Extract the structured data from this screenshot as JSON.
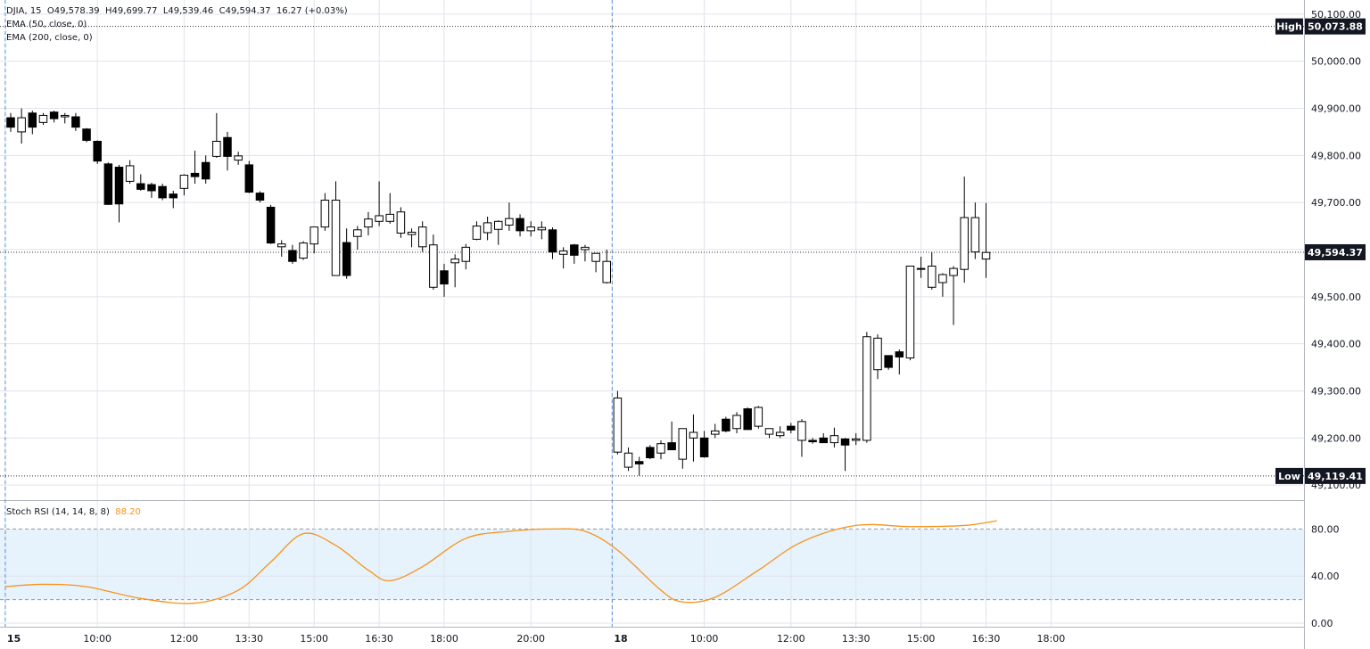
{
  "legend": {
    "symbol": "DJIA",
    "interval": "15",
    "open": "O49,578.39",
    "high": "H49,699.77",
    "low": "L49,539.46",
    "close": "C49,594.37",
    "change": "16.27 (+0.03%)",
    "ema50": "EMA (50, close, 0)",
    "ema200": "EMA (200, close, 0)"
  },
  "rsi_legend": {
    "label": "Stoch RSI (14, 14, 8, 8)",
    "value": "88.20"
  },
  "colors": {
    "up_fill": "#ffffff",
    "down_fill": "#000000",
    "wick": "#000000",
    "rsi_line": "#f7931a",
    "rsi_band": "#e6f3fc",
    "grid": "#e0e3eb"
  },
  "chart_data": [
    {
      "type": "candlestick",
      "title": "",
      "ylim": [
        49070,
        50130
      ],
      "yticks": [
        "50,100.00",
        "50,000.00",
        "49,900.00",
        "49,800.00",
        "49,700.00",
        "49,600.00",
        "49,500.00",
        "49,400.00",
        "49,300.00",
        "49,200.00",
        "49,100.00"
      ],
      "ytick_values": [
        50100,
        50000,
        49900,
        49800,
        49700,
        49600,
        49500,
        49400,
        49300,
        49200,
        49100
      ],
      "xticks": [
        "15",
        "10:00",
        "12:00",
        "13:30",
        "15:00",
        "16:30",
        "18:00",
        "20:00",
        "18",
        "10:00",
        "12:00",
        "13:30",
        "15:00",
        "16:30",
        "18:00"
      ],
      "xtick_bars": [
        -0.5,
        8,
        16,
        22,
        28,
        34,
        40,
        48,
        55.5,
        64,
        72,
        78,
        84,
        90,
        96
      ],
      "bold_xticks": [
        "15",
        "18"
      ],
      "day_separator_bars": [
        -0.5,
        55.5
      ],
      "labels": {
        "high_label": "High",
        "high_value": "50,073.88",
        "low_label": "Low",
        "low_value": "49,119.41",
        "last_value": "49,594.37"
      },
      "high": 50073.88,
      "low": 49119.41,
      "last": 49594.37,
      "candles": [
        {
          "o": 49880,
          "h": 49890,
          "l": 49850,
          "c": 49860
        },
        {
          "o": 49850,
          "h": 49900,
          "l": 49825,
          "c": 49880
        },
        {
          "o": 49890,
          "h": 49895,
          "l": 49845,
          "c": 49860
        },
        {
          "o": 49870,
          "h": 49890,
          "l": 49865,
          "c": 49885
        },
        {
          "o": 49892,
          "h": 49895,
          "l": 49870,
          "c": 49878
        },
        {
          "o": 49882,
          "h": 49890,
          "l": 49868,
          "c": 49885
        },
        {
          "o": 49882,
          "h": 49890,
          "l": 49852,
          "c": 49860
        },
        {
          "o": 49856,
          "h": 49858,
          "l": 49828,
          "c": 49832
        },
        {
          "o": 49830,
          "h": 49832,
          "l": 49782,
          "c": 49788
        },
        {
          "o": 49782,
          "h": 49785,
          "l": 49695,
          "c": 49696
        },
        {
          "o": 49775,
          "h": 49780,
          "l": 49658,
          "c": 49697
        },
        {
          "o": 49745,
          "h": 49790,
          "l": 49740,
          "c": 49778
        },
        {
          "o": 49740,
          "h": 49760,
          "l": 49725,
          "c": 49728
        },
        {
          "o": 49738,
          "h": 49742,
          "l": 49710,
          "c": 49725
        },
        {
          "o": 49734,
          "h": 49740,
          "l": 49705,
          "c": 49710
        },
        {
          "o": 49718,
          "h": 49725,
          "l": 49688,
          "c": 49710
        },
        {
          "o": 49730,
          "h": 49760,
          "l": 49715,
          "c": 49758
        },
        {
          "o": 49762,
          "h": 49810,
          "l": 49740,
          "c": 49755
        },
        {
          "o": 49785,
          "h": 49800,
          "l": 49740,
          "c": 49750
        },
        {
          "o": 49798,
          "h": 49890,
          "l": 49795,
          "c": 49830
        },
        {
          "o": 49838,
          "h": 49850,
          "l": 49768,
          "c": 49798
        },
        {
          "o": 49790,
          "h": 49808,
          "l": 49780,
          "c": 49799
        },
        {
          "o": 49780,
          "h": 49788,
          "l": 49720,
          "c": 49722
        },
        {
          "o": 49720,
          "h": 49724,
          "l": 49700,
          "c": 49705
        },
        {
          "o": 49690,
          "h": 49695,
          "l": 49612,
          "c": 49614
        },
        {
          "o": 49606,
          "h": 49620,
          "l": 49585,
          "c": 49612
        },
        {
          "o": 49598,
          "h": 49610,
          "l": 49570,
          "c": 49575
        },
        {
          "o": 49582,
          "h": 49618,
          "l": 49578,
          "c": 49614
        },
        {
          "o": 49612,
          "h": 49640,
          "l": 49592,
          "c": 49648
        },
        {
          "o": 49648,
          "h": 49720,
          "l": 49640,
          "c": 49705
        },
        {
          "o": 49545,
          "h": 49745,
          "l": 49545,
          "c": 49705
        },
        {
          "o": 49615,
          "h": 49645,
          "l": 49538,
          "c": 49545
        },
        {
          "o": 49628,
          "h": 49650,
          "l": 49600,
          "c": 49642
        },
        {
          "o": 49648,
          "h": 49680,
          "l": 49630,
          "c": 49665
        },
        {
          "o": 49660,
          "h": 49745,
          "l": 49650,
          "c": 49672
        },
        {
          "o": 49660,
          "h": 49720,
          "l": 49655,
          "c": 49675
        },
        {
          "o": 49635,
          "h": 49690,
          "l": 49625,
          "c": 49680
        },
        {
          "o": 49632,
          "h": 49645,
          "l": 49605,
          "c": 49637
        },
        {
          "o": 49606,
          "h": 49660,
          "l": 49595,
          "c": 49648
        },
        {
          "o": 49520,
          "h": 49632,
          "l": 49515,
          "c": 49610
        },
        {
          "o": 49555,
          "h": 49570,
          "l": 49500,
          "c": 49527
        },
        {
          "o": 49572,
          "h": 49590,
          "l": 49520,
          "c": 49580
        },
        {
          "o": 49575,
          "h": 49612,
          "l": 49558,
          "c": 49605
        },
        {
          "o": 49622,
          "h": 49660,
          "l": 49620,
          "c": 49650
        },
        {
          "o": 49636,
          "h": 49670,
          "l": 49620,
          "c": 49657
        },
        {
          "o": 49643,
          "h": 49662,
          "l": 49610,
          "c": 49660
        },
        {
          "o": 49652,
          "h": 49700,
          "l": 49640,
          "c": 49666
        },
        {
          "o": 49666,
          "h": 49675,
          "l": 49628,
          "c": 49640
        },
        {
          "o": 49640,
          "h": 49660,
          "l": 49628,
          "c": 49648
        },
        {
          "o": 49642,
          "h": 49660,
          "l": 49622,
          "c": 49647
        },
        {
          "o": 49642,
          "h": 49647,
          "l": 49580,
          "c": 49595
        },
        {
          "o": 49590,
          "h": 49605,
          "l": 49560,
          "c": 49597
        },
        {
          "o": 49610,
          "h": 49612,
          "l": 49570,
          "c": 49588
        },
        {
          "o": 49600,
          "h": 49610,
          "l": 49575,
          "c": 49605
        },
        {
          "o": 49575,
          "h": 49585,
          "l": 49552,
          "c": 49592
        },
        {
          "o": 49530,
          "h": 49600,
          "l": 49528,
          "c": 49575
        },
        {
          "o": 49170,
          "h": 49300,
          "l": 49165,
          "c": 49285
        },
        {
          "o": 49138,
          "h": 49180,
          "l": 49130,
          "c": 49168
        },
        {
          "o": 49150,
          "h": 49160,
          "l": 49120,
          "c": 49145
        },
        {
          "o": 49180,
          "h": 49185,
          "l": 49155,
          "c": 49158
        },
        {
          "o": 49168,
          "h": 49195,
          "l": 49155,
          "c": 49188
        },
        {
          "o": 49190,
          "h": 49235,
          "l": 49180,
          "c": 49175
        },
        {
          "o": 49155,
          "h": 49220,
          "l": 49135,
          "c": 49220
        },
        {
          "o": 49200,
          "h": 49250,
          "l": 49150,
          "c": 49212
        },
        {
          "o": 49200,
          "h": 49215,
          "l": 49158,
          "c": 49160
        },
        {
          "o": 49208,
          "h": 49230,
          "l": 49200,
          "c": 49215
        },
        {
          "o": 49240,
          "h": 49245,
          "l": 49212,
          "c": 49215
        },
        {
          "o": 49220,
          "h": 49255,
          "l": 49210,
          "c": 49248
        },
        {
          "o": 49262,
          "h": 49265,
          "l": 49218,
          "c": 49218
        },
        {
          "o": 49225,
          "h": 49268,
          "l": 49220,
          "c": 49265
        },
        {
          "o": 49208,
          "h": 49218,
          "l": 49200,
          "c": 49220
        },
        {
          "o": 49205,
          "h": 49225,
          "l": 49200,
          "c": 49212
        },
        {
          "o": 49225,
          "h": 49232,
          "l": 49210,
          "c": 49217
        },
        {
          "o": 49195,
          "h": 49240,
          "l": 49160,
          "c": 49235
        },
        {
          "o": 49195,
          "h": 49200,
          "l": 49188,
          "c": 49192
        },
        {
          "o": 49200,
          "h": 49210,
          "l": 49190,
          "c": 49190
        },
        {
          "o": 49190,
          "h": 49222,
          "l": 49180,
          "c": 49205
        },
        {
          "o": 49198,
          "h": 49200,
          "l": 49130,
          "c": 49185
        },
        {
          "o": 49195,
          "h": 49210,
          "l": 49185,
          "c": 49198
        },
        {
          "o": 49195,
          "h": 49425,
          "l": 49190,
          "c": 49415
        },
        {
          "o": 49345,
          "h": 49420,
          "l": 49325,
          "c": 49412
        },
        {
          "o": 49375,
          "h": 49375,
          "l": 49345,
          "c": 49350
        },
        {
          "o": 49383,
          "h": 49388,
          "l": 49335,
          "c": 49372
        },
        {
          "o": 49370,
          "h": 49565,
          "l": 49365,
          "c": 49565
        },
        {
          "o": 49560,
          "h": 49585,
          "l": 49540,
          "c": 49560
        },
        {
          "o": 49520,
          "h": 49595,
          "l": 49515,
          "c": 49565
        },
        {
          "o": 49530,
          "h": 49550,
          "l": 49500,
          "c": 49547
        },
        {
          "o": 49545,
          "h": 49565,
          "l": 49440,
          "c": 49560
        },
        {
          "o": 49558,
          "h": 49755,
          "l": 49530,
          "c": 49668
        },
        {
          "o": 49595,
          "h": 49700,
          "l": 49580,
          "c": 49668
        },
        {
          "o": 49580,
          "h": 49699,
          "l": 49540,
          "c": 49594
        }
      ]
    },
    {
      "type": "line",
      "title": "",
      "ylim": [
        -3,
        103
      ],
      "yticks": [
        "80.00",
        "40.00",
        "0.00"
      ],
      "ytick_values": [
        80,
        40,
        0
      ],
      "band": [
        20,
        80
      ],
      "x_bars": [
        -0.5,
        3,
        7,
        12,
        17,
        21,
        24,
        27,
        30,
        33,
        35,
        38,
        42,
        46,
        50,
        53,
        56,
        60,
        62,
        65,
        69,
        73,
        78,
        83,
        88,
        91
      ],
      "y": [
        31,
        33,
        31,
        21,
        17,
        28,
        52,
        76,
        66,
        45,
        36,
        48,
        72,
        78,
        80,
        78,
        62,
        28,
        18,
        22,
        45,
        69,
        83,
        82,
        83,
        87
      ]
    }
  ]
}
